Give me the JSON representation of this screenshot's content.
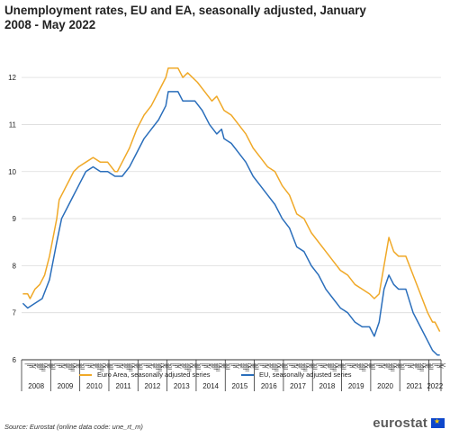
{
  "title": "Unemployment rates, EU and EA, seasonally adjusted, January 2008 - May 2022",
  "source": "Source: Eurostat (online data code: une_rt_m)",
  "logo": {
    "text": "eurostat",
    "icon": "eu-flag-icon"
  },
  "chart_data": {
    "type": "line",
    "title": "Unemployment rates, EU and EA, seasonally adjusted, January 2008 - May 2022",
    "xlabel": "",
    "ylabel": "",
    "ylim": [
      6,
      12.5
    ],
    "yticks": [
      6,
      7,
      8,
      9,
      10,
      11,
      12
    ],
    "grid": "horizontal",
    "legend_position": "bottom",
    "x_start": "2008-01",
    "x_end": "2022-05",
    "x_years": [
      "2008",
      "2009",
      "2010",
      "2011",
      "2012",
      "2013",
      "2014",
      "2015",
      "2016",
      "2017",
      "2018",
      "2019",
      "2020",
      "2021",
      "2022"
    ],
    "month_tick_labels": [
      "I",
      "II",
      "III",
      "IV",
      "V",
      "VI",
      "VII",
      "VIII",
      "IX",
      "X",
      "XI",
      "XII"
    ],
    "series": [
      {
        "name": "Euro Area, seasonally adjusted series",
        "color": "#f0a928",
        "points": [
          [
            "2008-01",
            7.4
          ],
          [
            "2008-03",
            7.4
          ],
          [
            "2008-04",
            7.3
          ],
          [
            "2008-06",
            7.5
          ],
          [
            "2008-08",
            7.6
          ],
          [
            "2008-10",
            7.8
          ],
          [
            "2008-12",
            8.2
          ],
          [
            "2009-03",
            9.0
          ],
          [
            "2009-04",
            9.4
          ],
          [
            "2009-06",
            9.6
          ],
          [
            "2009-08",
            9.8
          ],
          [
            "2009-10",
            10.0
          ],
          [
            "2009-12",
            10.1
          ],
          [
            "2010-03",
            10.2
          ],
          [
            "2010-06",
            10.3
          ],
          [
            "2010-09",
            10.2
          ],
          [
            "2010-12",
            10.2
          ],
          [
            "2011-03",
            10.0
          ],
          [
            "2011-04",
            10.0
          ],
          [
            "2011-06",
            10.2
          ],
          [
            "2011-09",
            10.5
          ],
          [
            "2011-12",
            10.9
          ],
          [
            "2012-03",
            11.2
          ],
          [
            "2012-06",
            11.4
          ],
          [
            "2012-09",
            11.7
          ],
          [
            "2012-12",
            12.0
          ],
          [
            "2013-01",
            12.2
          ],
          [
            "2013-05",
            12.2
          ],
          [
            "2013-07",
            12.0
          ],
          [
            "2013-09",
            12.1
          ],
          [
            "2013-11",
            12.0
          ],
          [
            "2014-01",
            11.9
          ],
          [
            "2014-04",
            11.7
          ],
          [
            "2014-07",
            11.5
          ],
          [
            "2014-09",
            11.6
          ],
          [
            "2014-12",
            11.3
          ],
          [
            "2015-03",
            11.2
          ],
          [
            "2015-06",
            11.0
          ],
          [
            "2015-09",
            10.8
          ],
          [
            "2015-12",
            10.5
          ],
          [
            "2016-03",
            10.3
          ],
          [
            "2016-06",
            10.1
          ],
          [
            "2016-09",
            10.0
          ],
          [
            "2016-12",
            9.7
          ],
          [
            "2017-03",
            9.5
          ],
          [
            "2017-06",
            9.1
          ],
          [
            "2017-09",
            9.0
          ],
          [
            "2017-12",
            8.7
          ],
          [
            "2018-03",
            8.5
          ],
          [
            "2018-06",
            8.3
          ],
          [
            "2018-09",
            8.1
          ],
          [
            "2018-12",
            7.9
          ],
          [
            "2019-03",
            7.8
          ],
          [
            "2019-06",
            7.6
          ],
          [
            "2019-09",
            7.5
          ],
          [
            "2019-12",
            7.4
          ],
          [
            "2020-02",
            7.3
          ],
          [
            "2020-04",
            7.4
          ],
          [
            "2020-06",
            8.0
          ],
          [
            "2020-08",
            8.6
          ],
          [
            "2020-10",
            8.3
          ],
          [
            "2020-12",
            8.2
          ],
          [
            "2021-03",
            8.2
          ],
          [
            "2021-06",
            7.8
          ],
          [
            "2021-09",
            7.4
          ],
          [
            "2021-12",
            7.0
          ],
          [
            "2022-02",
            6.8
          ],
          [
            "2022-03",
            6.8
          ],
          [
            "2022-05",
            6.6
          ]
        ]
      },
      {
        "name": "EU, seasonally adjusted series",
        "color": "#2a6ebb",
        "points": [
          [
            "2008-01",
            7.2
          ],
          [
            "2008-03",
            7.1
          ],
          [
            "2008-06",
            7.2
          ],
          [
            "2008-09",
            7.3
          ],
          [
            "2008-12",
            7.7
          ],
          [
            "2009-03",
            8.5
          ],
          [
            "2009-05",
            9.0
          ],
          [
            "2009-07",
            9.2
          ],
          [
            "2009-09",
            9.4
          ],
          [
            "2009-12",
            9.7
          ],
          [
            "2010-03",
            10.0
          ],
          [
            "2010-06",
            10.1
          ],
          [
            "2010-09",
            10.0
          ],
          [
            "2010-12",
            10.0
          ],
          [
            "2011-03",
            9.9
          ],
          [
            "2011-06",
            9.9
          ],
          [
            "2011-09",
            10.1
          ],
          [
            "2011-12",
            10.4
          ],
          [
            "2012-03",
            10.7
          ],
          [
            "2012-06",
            10.9
          ],
          [
            "2012-09",
            11.1
          ],
          [
            "2012-12",
            11.4
          ],
          [
            "2013-01",
            11.7
          ],
          [
            "2013-05",
            11.7
          ],
          [
            "2013-07",
            11.5
          ],
          [
            "2013-12",
            11.5
          ],
          [
            "2014-03",
            11.3
          ],
          [
            "2014-06",
            11.0
          ],
          [
            "2014-09",
            10.8
          ],
          [
            "2014-11",
            10.9
          ],
          [
            "2014-12",
            10.7
          ],
          [
            "2015-03",
            10.6
          ],
          [
            "2015-06",
            10.4
          ],
          [
            "2015-09",
            10.2
          ],
          [
            "2015-12",
            9.9
          ],
          [
            "2016-03",
            9.7
          ],
          [
            "2016-06",
            9.5
          ],
          [
            "2016-09",
            9.3
          ],
          [
            "2016-12",
            9.0
          ],
          [
            "2017-03",
            8.8
          ],
          [
            "2017-06",
            8.4
          ],
          [
            "2017-09",
            8.3
          ],
          [
            "2017-12",
            8.0
          ],
          [
            "2018-03",
            7.8
          ],
          [
            "2018-06",
            7.5
          ],
          [
            "2018-09",
            7.3
          ],
          [
            "2018-12",
            7.1
          ],
          [
            "2019-03",
            7.0
          ],
          [
            "2019-06",
            6.8
          ],
          [
            "2019-09",
            6.7
          ],
          [
            "2019-12",
            6.7
          ],
          [
            "2020-02",
            6.5
          ],
          [
            "2020-04",
            6.8
          ],
          [
            "2020-06",
            7.5
          ],
          [
            "2020-08",
            7.8
          ],
          [
            "2020-10",
            7.6
          ],
          [
            "2020-12",
            7.5
          ],
          [
            "2021-03",
            7.5
          ],
          [
            "2021-06",
            7.0
          ],
          [
            "2021-09",
            6.7
          ],
          [
            "2021-12",
            6.4
          ],
          [
            "2022-02",
            6.2
          ],
          [
            "2022-04",
            6.1
          ],
          [
            "2022-05",
            6.1
          ]
        ]
      }
    ]
  }
}
